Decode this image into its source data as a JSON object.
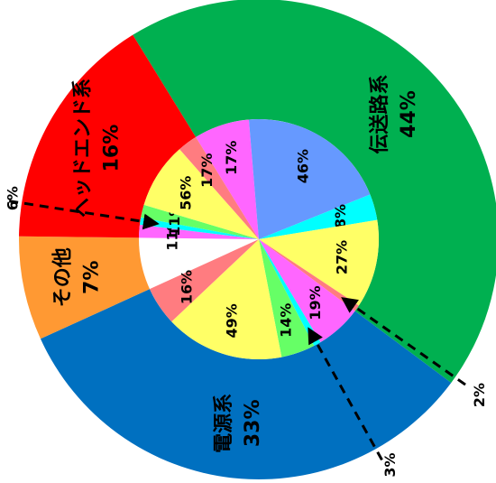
{
  "chart_data": {
    "type": "sunburst",
    "groups": [
      {
        "name": "伝送路系",
        "value": 44,
        "value_label": "44%",
        "color": "#00b050",
        "children": {
          "values": [
            17,
            46,
            8,
            27,
            2
          ],
          "value_labels": [
            "17%",
            "46%",
            "8%",
            "27%",
            "2%"
          ],
          "colors": [
            "#ff66ff",
            "#6699ff",
            "#00ffff",
            "#ffff66",
            "#ff7c80"
          ]
        }
      },
      {
        "name": "電源系",
        "value": 33,
        "value_label": "33%",
        "color": "#0070c0",
        "children": {
          "values": [
            19,
            3,
            14,
            49,
            16
          ],
          "value_labels": [
            "19%",
            "3%",
            "14%",
            "49%",
            "16%"
          ],
          "colors": [
            "#ff66ff",
            "#00ffff",
            "#66ff66",
            "#ffff66",
            "#ff7c80"
          ]
        }
      },
      {
        "name": "その他",
        "value": 7,
        "value_label": "7%",
        "color": "#ff9933"
      },
      {
        "name": "ヘッドエンド系",
        "value": 16,
        "value_label": "16%",
        "color": "#ff0000",
        "children": {
          "values": [
            11,
            6,
            11,
            56,
            17
          ],
          "value_labels": [
            "11%",
            "6%",
            "11%",
            "56%",
            "17%"
          ],
          "colors": [
            "#ff66ff",
            "#00ffff",
            "#66ff66",
            "#ffff66",
            "#ff7c80"
          ]
        }
      }
    ]
  }
}
